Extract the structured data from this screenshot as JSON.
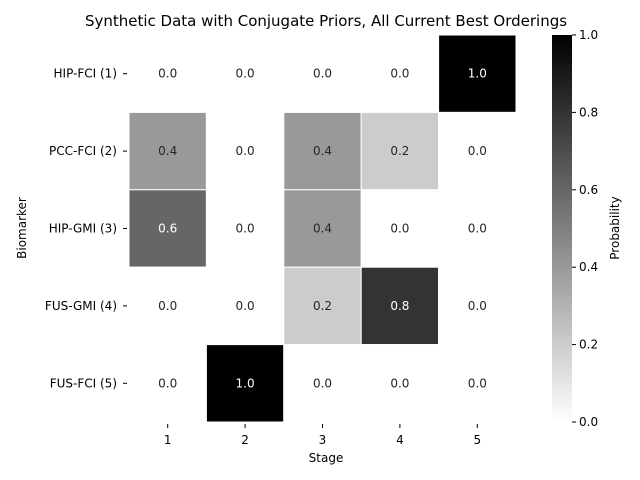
{
  "chart_data": {
    "type": "heatmap",
    "title": "Synthetic Data with Conjugate Priors, All Current Best Orderings",
    "xlabel": "Stage",
    "ylabel": "Biomarker",
    "x_categories": [
      "1",
      "2",
      "3",
      "4",
      "5"
    ],
    "y_categories": [
      "HIP-FCI (1)",
      "PCC-FCI (2)",
      "HIP-GMI (3)",
      "FUS-GMI (4)",
      "FUS-FCI (5)"
    ],
    "values": [
      [
        0.0,
        0.0,
        0.0,
        0.0,
        1.0
      ],
      [
        0.4,
        0.0,
        0.4,
        0.2,
        0.0
      ],
      [
        0.6,
        0.0,
        0.4,
        0.0,
        0.0
      ],
      [
        0.0,
        0.0,
        0.2,
        0.8,
        0.0
      ],
      [
        0.0,
        1.0,
        0.0,
        0.0,
        0.0
      ]
    ],
    "cell_labels": [
      [
        "0.0",
        "0.0",
        "0.0",
        "0.0",
        "1.0"
      ],
      [
        "0.4",
        "0.0",
        "0.4",
        "0.2",
        "0.0"
      ],
      [
        "0.6",
        "0.0",
        "0.4",
        "0.0",
        "0.0"
      ],
      [
        "0.0",
        "0.0",
        "0.2",
        "0.8",
        "0.0"
      ],
      [
        "0.0",
        "1.0",
        "0.0",
        "0.0",
        "0.0"
      ]
    ],
    "colorbar": {
      "label": "Probability",
      "range": [
        0.0,
        1.0
      ],
      "ticks": [
        "0.0",
        "0.2",
        "0.4",
        "0.6",
        "0.8",
        "1.0"
      ],
      "colormap": "Greys"
    },
    "cell_border_color": "#ffffff"
  }
}
